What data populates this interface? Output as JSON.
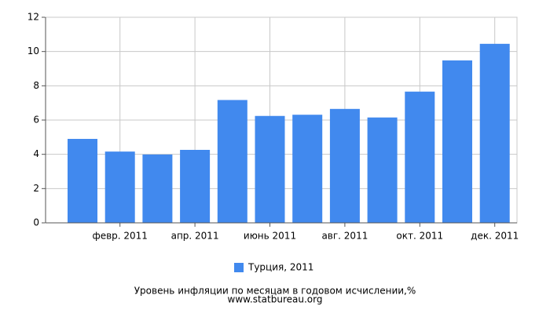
{
  "chart_data": {
    "type": "bar",
    "title": "Уровень инфляции по месяцам в годовом исчислении,%",
    "subtitle": "www.statbureau.org",
    "categories": [
      null,
      "февр. 2011",
      null,
      "апр. 2011",
      null,
      "июнь 2011",
      null,
      "авг. 2011",
      null,
      "окт. 2011",
      null,
      "дек. 2011"
    ],
    "series": [
      {
        "name": "Турция, 2011",
        "color": "#4189ee",
        "values": [
          4.9,
          4.16,
          3.99,
          4.26,
          7.17,
          6.24,
          6.31,
          6.65,
          6.15,
          7.66,
          9.48,
          10.45
        ]
      }
    ],
    "ylim": [
      0,
      12
    ],
    "yticks": [
      0,
      2,
      4,
      6,
      8,
      10,
      12
    ],
    "grid": true,
    "legend": "bottom"
  }
}
